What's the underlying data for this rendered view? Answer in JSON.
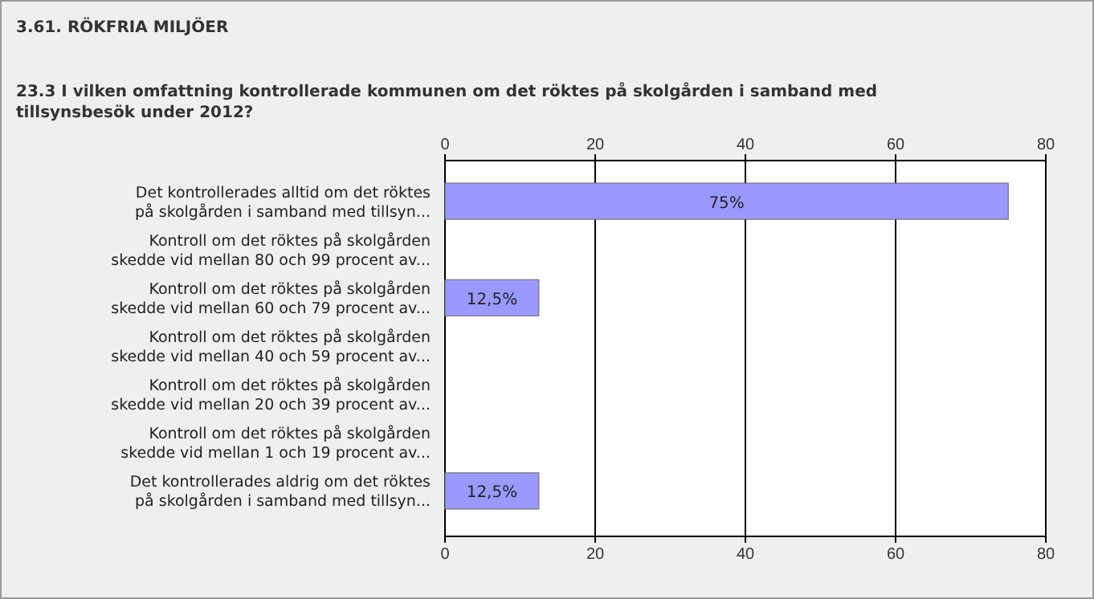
{
  "chart_data": {
    "type": "bar",
    "orientation": "horizontal",
    "title": "3.61. RÖKFRIA MILJÖER",
    "subtitle": "23.3 I vilken omfattning kontrollerade kommunen om det röktes på skolgården i samband med tillsynsbesök under 2012?",
    "categories": [
      "Det kontrollerades alltid om det röktes\npå skolgården i samband med tillsyn...",
      "Kontroll om det röktes på skolgården\nskedde vid mellan 80 och 99 procent av...",
      "Kontroll om det röktes på skolgården\nskedde vid mellan 60 och 79 procent av...",
      "Kontroll om det röktes på skolgården\nskedde vid mellan 40 och 59 procent av...",
      "Kontroll om det röktes på skolgården\nskedde vid mellan 20 och 39 procent av...",
      "Kontroll om det röktes på skolgården\nskedde vid mellan 1 och 19 procent av...",
      "Det kontrollerades aldrig om det röktes\npå skolgården i samband med tillsyn..."
    ],
    "values": [
      75,
      0,
      12.5,
      0,
      0,
      0,
      12.5
    ],
    "value_labels": [
      "75%",
      null,
      "12,5%",
      null,
      null,
      null,
      "12,5%"
    ],
    "color": "#9999ff",
    "xlim": [
      0,
      80
    ],
    "xticks": [
      0,
      20,
      40,
      60,
      80
    ],
    "x2lim": [
      0,
      80
    ],
    "x2ticks": [
      0,
      20,
      40,
      60,
      80
    ],
    "grid": "x"
  }
}
